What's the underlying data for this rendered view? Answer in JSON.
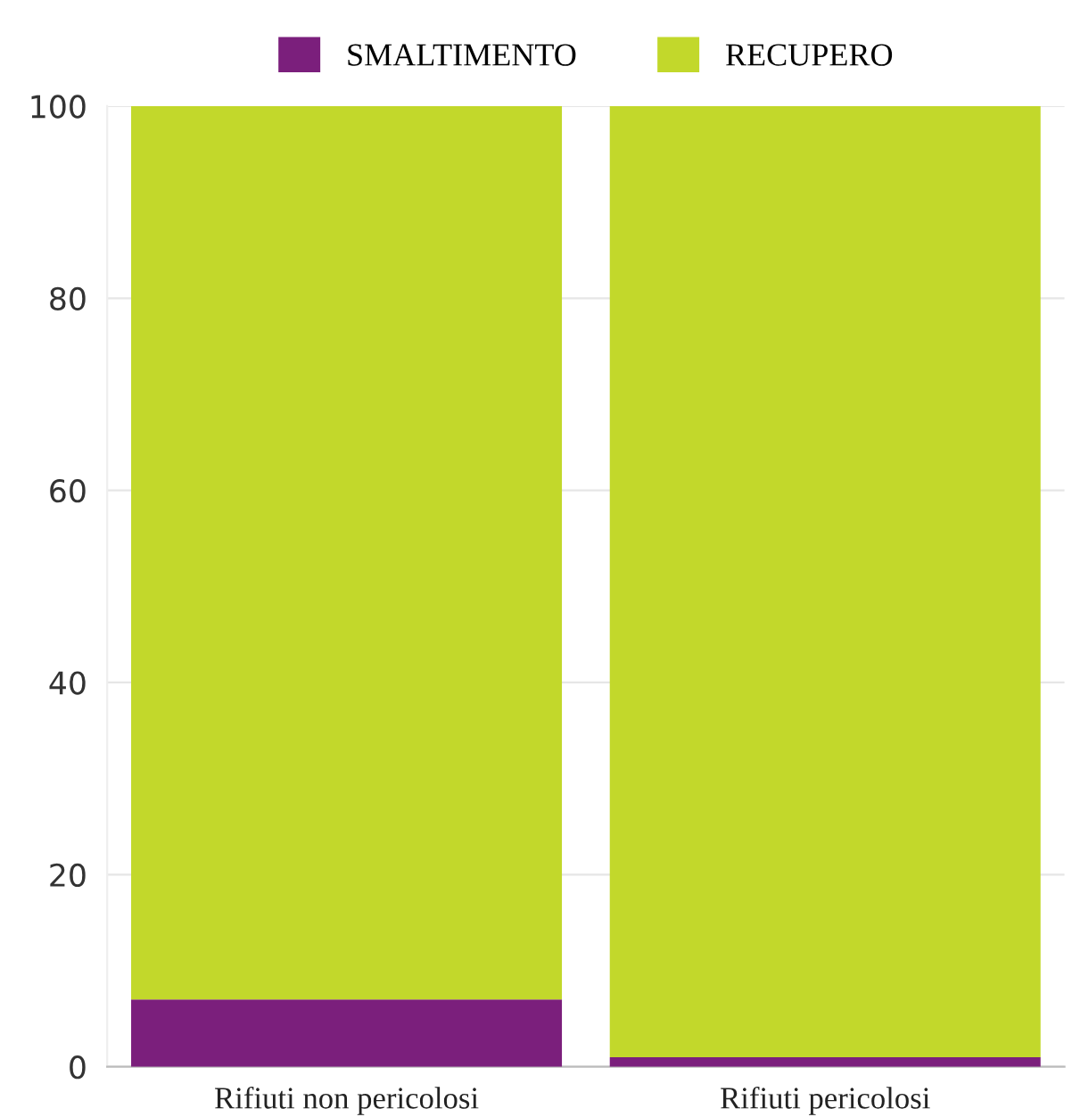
{
  "chart_data": {
    "type": "bar",
    "stacked": true,
    "categories": [
      "Rifiuti non pericolosi",
      "Rifiuti pericolosi"
    ],
    "series": [
      {
        "name": "SMALTIMENTO",
        "color": "#7b1f7c",
        "values": [
          7,
          1
        ]
      },
      {
        "name": "RECUPERO",
        "color": "#c2d82b",
        "values": [
          93,
          99
        ]
      }
    ],
    "ylim": [
      0,
      100
    ],
    "yticks": [
      0,
      20,
      40,
      60,
      80,
      100
    ],
    "grid": "y",
    "legend": "top"
  }
}
